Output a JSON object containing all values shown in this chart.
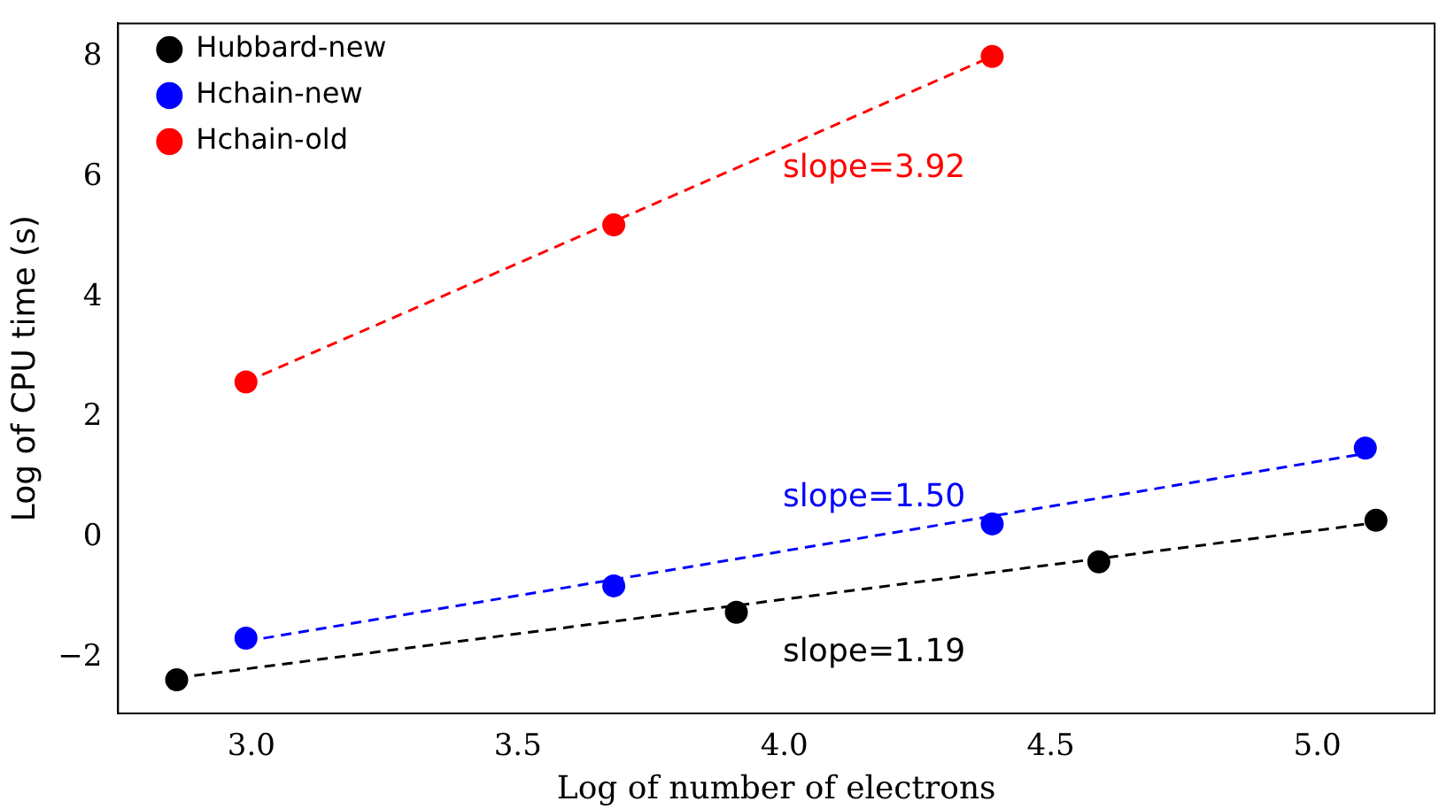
{
  "chart_data": {
    "type": "scatter",
    "xlabel": "Log of number of electrons",
    "ylabel": "Log of CPU time (s)",
    "xlim": [
      2.75,
      5.22
    ],
    "xticks": [
      {
        "value": 3,
        "label": "3.0"
      },
      {
        "value": 3.5,
        "label": "3.5"
      },
      {
        "value": 4,
        "label": "4.0"
      },
      {
        "value": 4.5,
        "label": "4.5"
      },
      {
        "value": 5,
        "label": "5.0"
      }
    ],
    "ylim": [
      -2.92,
      8.55
    ],
    "yticks": [
      {
        "value": -2,
        "label": "−2"
      },
      0,
      2,
      4,
      6,
      8
    ],
    "series": [
      {
        "name": "Hubbard-new",
        "color": "#000000",
        "x": [
          2.86,
          3.91,
          4.59,
          5.11
        ],
        "values": [
          -2.36,
          -1.24,
          -0.4,
          0.29
        ]
      },
      {
        "name": "Hchain-new",
        "color": "#0000ff",
        "x": [
          2.99,
          3.68,
          4.39,
          5.09
        ],
        "values": [
          -1.67,
          -0.8,
          0.23,
          1.49
        ]
      },
      {
        "name": "Hchain-old",
        "color": "#ff0000",
        "x": [
          2.99,
          3.68,
          4.39
        ],
        "values": [
          2.59,
          5.2,
          8.0
        ]
      },
      {
        "type": "line",
        "color": "#ff0000",
        "x": [
          2.99,
          4.39
        ],
        "values": [
          2.59,
          8.0
        ],
        "marker": "none",
        "line_style": "dashed"
      },
      {
        "type": "line",
        "color": "#0000ff",
        "x": [
          2.99,
          5.09
        ],
        "values": [
          -1.72,
          1.4
        ],
        "marker": "none",
        "line_style": "dashed"
      },
      {
        "type": "line",
        "color": "#000000",
        "x": [
          2.86,
          5.11
        ],
        "values": [
          -2.33,
          0.25
        ],
        "marker": "none",
        "line_style": "dashed"
      }
    ],
    "annotations": [
      "slope=3.92",
      "slope=1.50",
      "slope=1.19"
    ],
    "marker": "circle",
    "legend": "top left",
    "grid": false
  }
}
